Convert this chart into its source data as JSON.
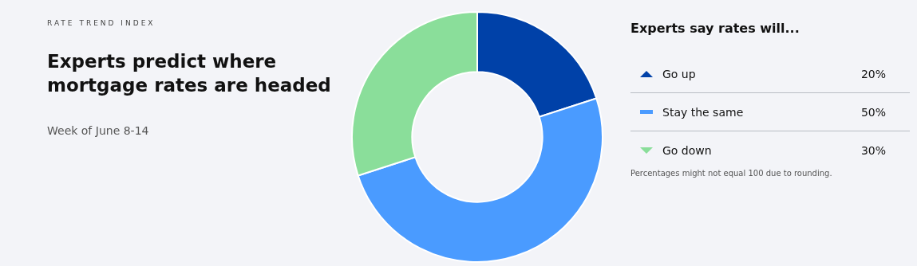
{
  "chart_data": {
    "type": "donut",
    "title": "Experts predict where mortgage rates are headed",
    "subtitle": "Week of June 8-14",
    "legend_title": "Experts say rates will...",
    "categories": [
      "Go up",
      "Stay the same",
      "Go down"
    ],
    "values": [
      20,
      50,
      30
    ],
    "value_labels": [
      "20%",
      "50%",
      "30%"
    ],
    "colors": [
      "#0041a8",
      "#4a9bff",
      "#8ade9a"
    ],
    "legend": "right",
    "annotations": [
      "RATE TREND INDEX",
      "Percentages might not equal 100 due to rounding."
    ]
  }
}
